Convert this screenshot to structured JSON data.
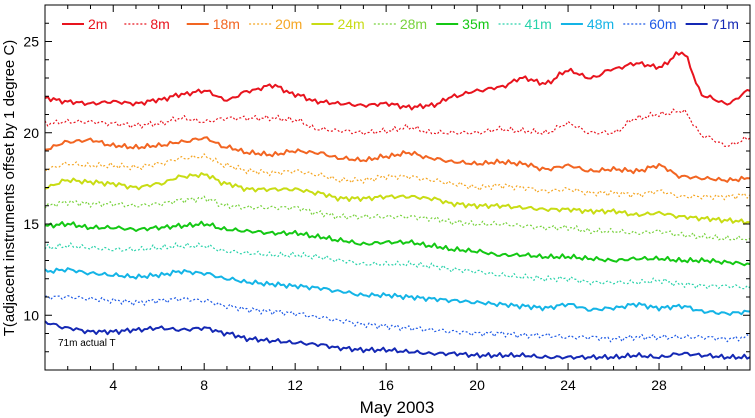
{
  "chart_data": {
    "type": "line",
    "title": "",
    "xlabel": "May 2003",
    "ylabel": "T(adjacent instruments offset by 1 degree C)",
    "xlim": [
      1,
      32
    ],
    "ylim": [
      7,
      27
    ],
    "x_ticks": [
      4,
      8,
      12,
      16,
      20,
      24,
      28
    ],
    "x_tick_labels": [
      "4",
      "8",
      "12",
      "16",
      "20",
      "24",
      "28"
    ],
    "y_ticks": [
      10,
      15,
      20,
      25
    ],
    "y_tick_labels": [
      "10",
      "15",
      "20",
      "25"
    ],
    "grid": false,
    "legend_position": "top",
    "annotation": "71m actual T",
    "x": [
      1,
      2,
      3,
      4,
      5,
      6,
      7,
      8,
      9,
      10,
      11,
      12,
      13,
      14,
      15,
      16,
      17,
      18,
      19,
      20,
      21,
      22,
      23,
      24,
      25,
      26,
      27,
      28,
      29,
      30,
      31,
      32
    ],
    "series": [
      {
        "name": "2m",
        "color": "#e8141e",
        "dash": "solid",
        "width": 2.0,
        "values": [
          21.9,
          21.7,
          21.6,
          21.7,
          21.6,
          21.8,
          22.1,
          22.3,
          21.8,
          22.3,
          22.6,
          22.1,
          21.7,
          21.6,
          21.5,
          21.6,
          21.4,
          21.5,
          22.0,
          22.3,
          22.5,
          23.0,
          22.7,
          23.4,
          23.0,
          23.5,
          23.8,
          23.6,
          24.4,
          22.0,
          21.6,
          22.3
        ]
      },
      {
        "name": "8m",
        "color": "#e8141e",
        "dash": "dotted",
        "width": 1.2,
        "values": [
          20.5,
          20.6,
          20.6,
          20.5,
          20.4,
          20.5,
          20.8,
          20.6,
          20.8,
          20.8,
          20.8,
          20.7,
          20.2,
          20.1,
          20.0,
          20.1,
          20.3,
          20.0,
          20.0,
          20.0,
          20.2,
          20.1,
          20.0,
          20.5,
          20.0,
          20.0,
          20.8,
          21.0,
          21.2,
          19.8,
          19.3,
          19.7
        ]
      },
      {
        "name": "18m",
        "color": "#f26522",
        "dash": "solid",
        "width": 2.0,
        "values": [
          19.1,
          19.5,
          19.6,
          19.3,
          19.2,
          19.3,
          19.5,
          19.7,
          19.2,
          18.9,
          18.8,
          19.0,
          18.9,
          18.6,
          18.5,
          18.7,
          18.9,
          18.6,
          18.4,
          18.3,
          18.4,
          18.3,
          18.0,
          18.2,
          17.9,
          18.0,
          17.9,
          18.2,
          17.6,
          17.5,
          17.4,
          17.5
        ]
      },
      {
        "name": "20m",
        "color": "#f5a623",
        "dash": "dotted",
        "width": 1.2,
        "values": [
          18.0,
          18.3,
          18.2,
          18.2,
          18.1,
          18.3,
          18.6,
          18.7,
          18.2,
          17.9,
          17.8,
          17.9,
          17.7,
          17.4,
          17.4,
          17.6,
          17.6,
          17.4,
          17.2,
          17.0,
          17.1,
          17.0,
          16.8,
          16.9,
          16.7,
          16.7,
          16.6,
          16.8,
          16.5,
          16.5,
          16.5,
          16.6
        ]
      },
      {
        "name": "24m",
        "color": "#c8dc14",
        "dash": "solid",
        "width": 2.0,
        "values": [
          17.0,
          17.4,
          17.3,
          17.2,
          17.0,
          17.2,
          17.6,
          17.7,
          17.2,
          16.9,
          16.9,
          16.9,
          16.7,
          16.4,
          16.4,
          16.5,
          16.5,
          16.4,
          16.1,
          16.0,
          16.0,
          15.9,
          15.8,
          15.8,
          15.7,
          15.7,
          15.5,
          15.6,
          15.4,
          15.3,
          15.2,
          15.1
        ]
      },
      {
        "name": "28m",
        "color": "#78d23c",
        "dash": "dotted",
        "width": 1.2,
        "values": [
          16.0,
          16.2,
          16.1,
          16.1,
          16.0,
          16.1,
          16.3,
          16.4,
          16.0,
          15.9,
          15.9,
          15.9,
          15.6,
          15.4,
          15.4,
          15.4,
          15.4,
          15.3,
          15.1,
          15.0,
          15.0,
          14.9,
          14.8,
          14.8,
          14.6,
          14.6,
          14.5,
          14.6,
          14.4,
          14.3,
          14.2,
          14.2
        ]
      },
      {
        "name": "35m",
        "color": "#14c814",
        "dash": "solid",
        "width": 2.0,
        "values": [
          14.9,
          15.0,
          14.8,
          14.8,
          14.7,
          14.8,
          14.9,
          15.0,
          14.7,
          14.6,
          14.5,
          14.5,
          14.3,
          14.1,
          13.9,
          14.0,
          14.0,
          13.8,
          13.6,
          13.5,
          13.3,
          13.3,
          13.2,
          13.2,
          13.1,
          13.0,
          13.1,
          13.1,
          13.0,
          13.0,
          12.9,
          12.8
        ]
      },
      {
        "name": "41m",
        "color": "#28d2aa",
        "dash": "dotted",
        "width": 1.2,
        "values": [
          13.7,
          13.8,
          13.7,
          13.6,
          13.6,
          13.7,
          13.8,
          13.8,
          13.5,
          13.4,
          13.3,
          13.3,
          13.2,
          13.0,
          12.8,
          12.8,
          12.8,
          12.7,
          12.5,
          12.4,
          12.2,
          12.1,
          12.0,
          12.0,
          11.8,
          11.8,
          11.8,
          11.9,
          11.7,
          11.6,
          11.6,
          11.5
        ]
      },
      {
        "name": "48m",
        "color": "#14b4e6",
        "dash": "solid",
        "width": 2.0,
        "values": [
          12.4,
          12.5,
          12.3,
          12.2,
          12.1,
          12.2,
          12.4,
          12.3,
          12.0,
          11.8,
          11.7,
          11.6,
          11.5,
          11.3,
          11.1,
          11.1,
          11.0,
          10.9,
          10.8,
          10.7,
          10.6,
          10.5,
          10.4,
          10.6,
          10.3,
          10.4,
          10.6,
          10.4,
          10.5,
          10.2,
          10.1,
          10.2
        ]
      },
      {
        "name": "60m",
        "color": "#1e5ae6",
        "dash": "dotted",
        "width": 1.2,
        "values": [
          11.0,
          11.0,
          10.9,
          10.8,
          10.7,
          10.8,
          10.9,
          10.8,
          10.5,
          10.3,
          10.2,
          10.1,
          9.9,
          9.7,
          9.5,
          9.4,
          9.3,
          9.2,
          9.1,
          9.0,
          9.0,
          8.9,
          8.9,
          8.8,
          8.8,
          8.7,
          8.8,
          8.8,
          8.8,
          8.8,
          8.7,
          8.8
        ]
      },
      {
        "name": "71m",
        "color": "#1428b4",
        "dash": "solid",
        "width": 2.0,
        "values": [
          9.6,
          9.3,
          9.1,
          9.1,
          9.2,
          9.3,
          9.2,
          9.3,
          9.0,
          8.7,
          8.6,
          8.5,
          8.4,
          8.2,
          8.1,
          8.1,
          8.0,
          7.9,
          7.9,
          7.8,
          7.8,
          7.8,
          7.7,
          7.7,
          7.7,
          7.7,
          7.8,
          7.7,
          7.9,
          7.8,
          7.7,
          7.7
        ]
      }
    ]
  },
  "colors": {
    "axis": "#000000",
    "background": "#ffffff"
  }
}
